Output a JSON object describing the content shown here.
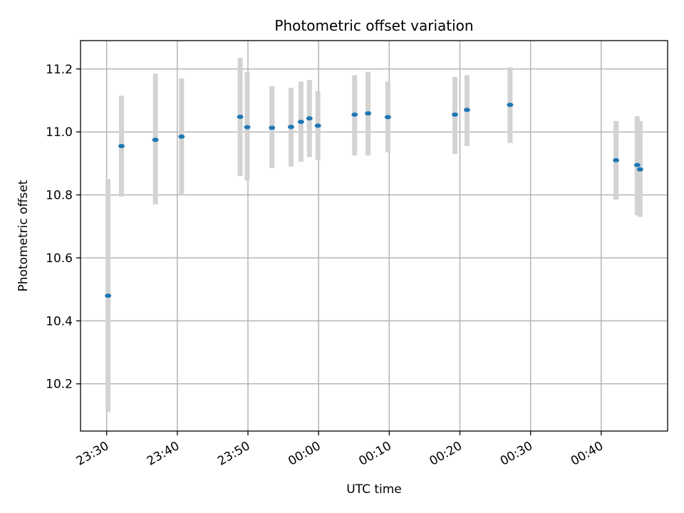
{
  "chart_data": {
    "type": "scatter",
    "title": "Photometric offset variation",
    "xlabel": "UTC time",
    "ylabel": "Photometric offset",
    "x_ticks": [
      "23:30",
      "23:40",
      "23:50",
      "00:00",
      "00:10",
      "00:20",
      "00:30",
      "00:40"
    ],
    "x_tick_minutes": [
      0,
      10,
      20,
      30,
      40,
      50,
      60,
      70
    ],
    "y_ticks": [
      "10.2",
      "10.4",
      "10.6",
      "10.8",
      "11.0",
      "11.2"
    ],
    "y_tick_values": [
      10.2,
      10.4,
      10.6,
      10.8,
      11.0,
      11.2
    ],
    "xlim_minutes": [
      -3.7,
      79.4
    ],
    "ylim": [
      10.05,
      11.29
    ],
    "grid": true,
    "legend": "none",
    "colors": {
      "marker": "#1f77b4",
      "errorbar": "#d3d3d3"
    },
    "series": [
      {
        "points": [
          {
            "t": 0.2,
            "y": 10.48,
            "lo": 10.11,
            "hi": 10.85
          },
          {
            "t": 2.1,
            "y": 10.955,
            "lo": 10.795,
            "hi": 11.115
          },
          {
            "t": 6.9,
            "y": 10.975,
            "lo": 10.77,
            "hi": 11.185
          },
          {
            "t": 10.6,
            "y": 10.985,
            "lo": 10.8,
            "hi": 11.17
          },
          {
            "t": 18.9,
            "y": 11.048,
            "lo": 10.86,
            "hi": 11.235
          },
          {
            "t": 19.9,
            "y": 11.015,
            "lo": 10.845,
            "hi": 11.19
          },
          {
            "t": 23.4,
            "y": 11.013,
            "lo": 10.885,
            "hi": 11.145
          },
          {
            "t": 26.1,
            "y": 11.016,
            "lo": 10.89,
            "hi": 11.14
          },
          {
            "t": 27.5,
            "y": 11.032,
            "lo": 10.905,
            "hi": 11.16
          },
          {
            "t": 28.7,
            "y": 11.043,
            "lo": 10.92,
            "hi": 11.165
          },
          {
            "t": 29.9,
            "y": 11.02,
            "lo": 10.91,
            "hi": 11.13
          },
          {
            "t": 35.1,
            "y": 11.055,
            "lo": 10.925,
            "hi": 11.18
          },
          {
            "t": 37.0,
            "y": 11.059,
            "lo": 10.925,
            "hi": 11.19
          },
          {
            "t": 39.8,
            "y": 11.047,
            "lo": 10.935,
            "hi": 11.16
          },
          {
            "t": 49.3,
            "y": 11.055,
            "lo": 10.93,
            "hi": 11.175
          },
          {
            "t": 51.0,
            "y": 11.07,
            "lo": 10.955,
            "hi": 11.18
          },
          {
            "t": 57.1,
            "y": 11.086,
            "lo": 10.965,
            "hi": 11.205
          },
          {
            "t": 72.1,
            "y": 10.91,
            "lo": 10.785,
            "hi": 11.035
          },
          {
            "t": 75.1,
            "y": 10.895,
            "lo": 10.735,
            "hi": 11.05
          },
          {
            "t": 75.5,
            "y": 10.881,
            "lo": 10.73,
            "hi": 11.035
          }
        ]
      }
    ]
  }
}
